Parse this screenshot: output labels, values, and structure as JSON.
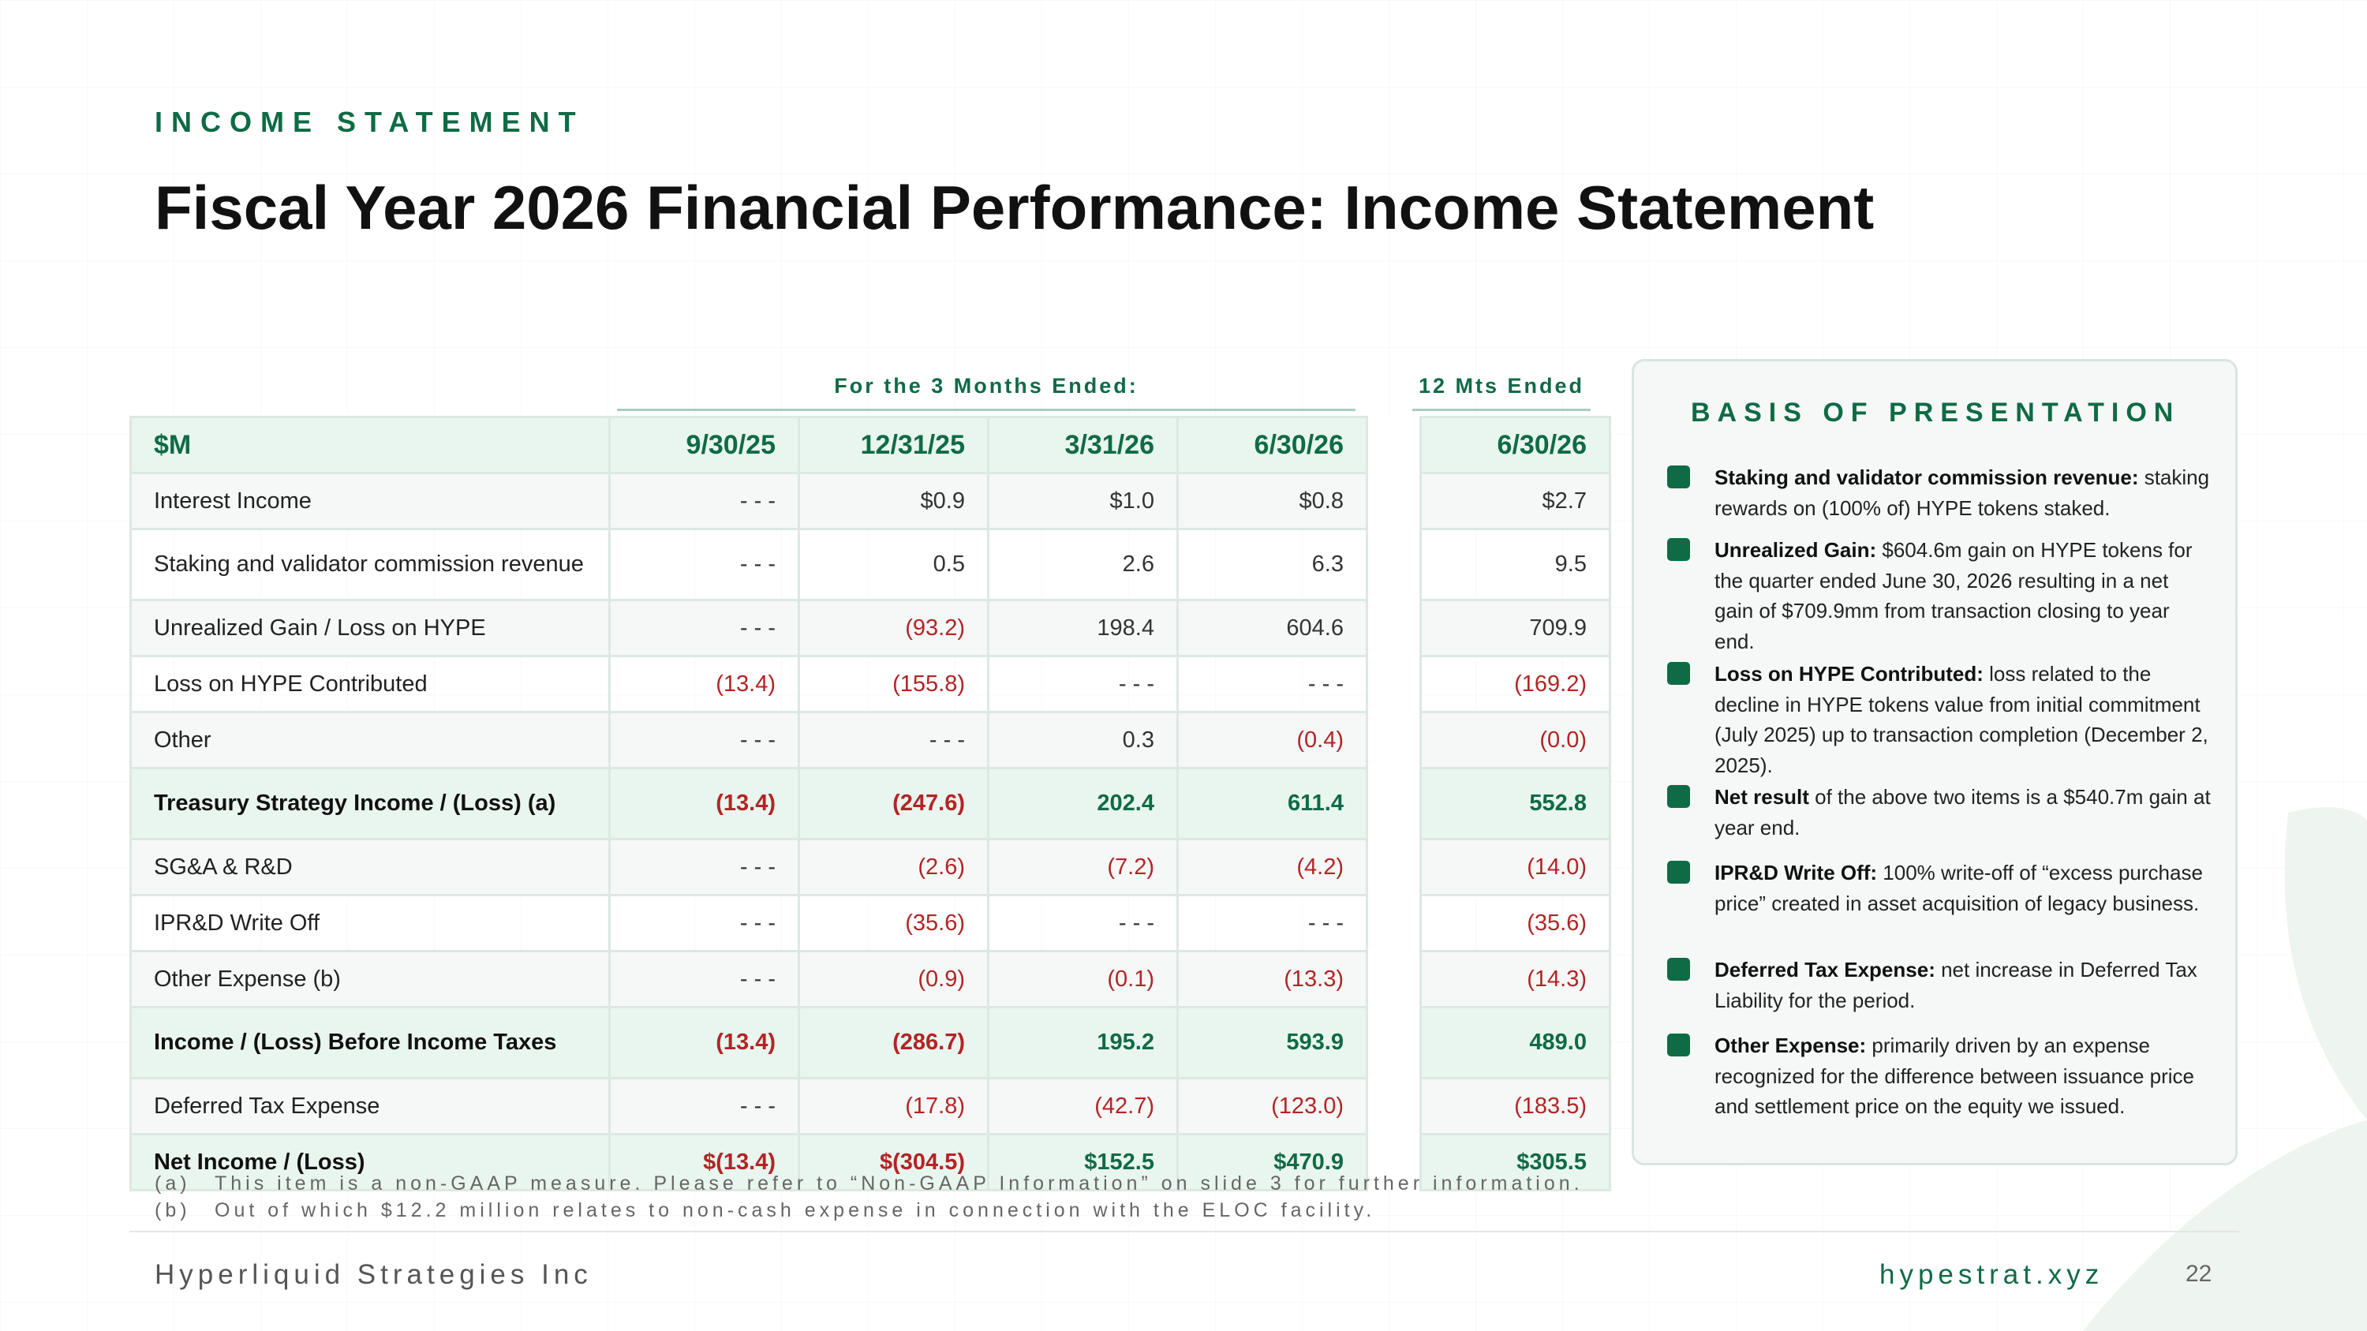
{
  "header": {
    "section_label": "INCOME STATEMENT",
    "title": "Fiscal Year 2026 Financial Performance: Income Statement"
  },
  "table": {
    "group_quarterly": "For the 3 Months Ended:",
    "group_annual": "12 Mts Ended",
    "columns": [
      "$M",
      "9/30/25",
      "12/31/25",
      "3/31/26",
      "6/30/26",
      "6/30/26"
    ],
    "rows": [
      {
        "label": "Interest Income",
        "values": [
          "- - -",
          "$0.9",
          "$1.0",
          "$0.8"
        ],
        "annual": "$2.7",
        "bold": false
      },
      {
        "label": "Staking and validator commission revenue",
        "values": [
          "- - -",
          "0.5",
          "2.6",
          "6.3"
        ],
        "annual": "9.5",
        "bold": false
      },
      {
        "label": "Unrealized Gain / Loss on HYPE",
        "values": [
          "- - -",
          "(93.2)",
          "198.4",
          "604.6"
        ],
        "annual": "709.9",
        "bold": false
      },
      {
        "label": "Loss on HYPE Contributed",
        "values": [
          "(13.4)",
          "(155.8)",
          "- - -",
          "- - -"
        ],
        "annual": "(169.2)",
        "bold": false
      },
      {
        "label": "Other",
        "values": [
          "- - -",
          "- - -",
          "0.3",
          "(0.4)"
        ],
        "annual": "(0.0)",
        "bold": false
      },
      {
        "label": "Treasury Strategy Income / (Loss) (a)",
        "values": [
          "(13.4)",
          "(247.6)",
          "202.4",
          "611.4"
        ],
        "annual": "552.8",
        "bold": true
      },
      {
        "label": "SG&A & R&D",
        "values": [
          "- - -",
          "(2.6)",
          "(7.2)",
          "(4.2)"
        ],
        "annual": "(14.0)",
        "bold": false
      },
      {
        "label": "IPR&D Write Off",
        "values": [
          "- - -",
          "(35.6)",
          "- - -",
          "- - -"
        ],
        "annual": "(35.6)",
        "bold": false
      },
      {
        "label": "Other Expense (b)",
        "values": [
          "- - -",
          "(0.9)",
          "(0.1)",
          "(13.3)"
        ],
        "annual": "(14.3)",
        "bold": false
      },
      {
        "label": "Income / (Loss) Before Income Taxes",
        "values": [
          "(13.4)",
          "(286.7)",
          "195.2",
          "593.9"
        ],
        "annual": "489.0",
        "bold": true
      },
      {
        "label": "Deferred Tax Expense",
        "values": [
          "- - -",
          "(17.8)",
          "(42.7)",
          "(123.0)"
        ],
        "annual": "(183.5)",
        "bold": false
      },
      {
        "label": "Net Income / (Loss)",
        "values": [
          "$(13.4)",
          "$(304.5)",
          "$152.5",
          "$470.9"
        ],
        "annual": "$305.5",
        "bold": true
      }
    ]
  },
  "notes": [
    {
      "marker": "(a)",
      "text": "This item is a non-GAAP measure. Please refer to “Non-GAAP Information” on slide 3 for further information."
    },
    {
      "marker": "(b)",
      "text": "Out of which $12.2 million relates to non-cash expense in connection with the ELOC facility."
    }
  ],
  "basis": {
    "title": "BASIS OF PRESENTATION",
    "items": [
      {
        "term": "Staking and validator commission revenue:",
        "text": " staking rewards on (100% of) HYPE tokens staked."
      },
      {
        "term": "Unrealized Gain:",
        "text": " $604.6m gain on HYPE tokens for the quarter ended June 30, 2026 resulting in a net gain of $709.9mm from transaction closing to year end."
      },
      {
        "term": "Loss on HYPE Contributed:",
        "text": " loss related to the decline in HYPE tokens value from initial commitment (July 2025) up to transaction completion (December 2, 2025)."
      },
      {
        "term": "Net result",
        "text": " of the above two items is a $540.7m gain at year end."
      },
      {
        "term": "IPR&D Write Off:",
        "text": " 100% write-off of “excess purchase price” created in asset acquisition of legacy business."
      },
      {
        "term": "Deferred Tax Expense:",
        "text": " net increase in Deferred Tax Liability for the period."
      },
      {
        "term": "Other Expense:",
        "text": " primarily driven by an expense recognized for the difference between issuance price and settlement price on the equity we issued."
      }
    ]
  },
  "footer": {
    "company": "Hyperliquid Strategies Inc",
    "website": "hypestrat.xyz",
    "page_number": "22"
  },
  "colors": {
    "brand_green": "#0f6b45",
    "negative_red": "#b32424",
    "header_fill": "#e9f5ef"
  }
}
